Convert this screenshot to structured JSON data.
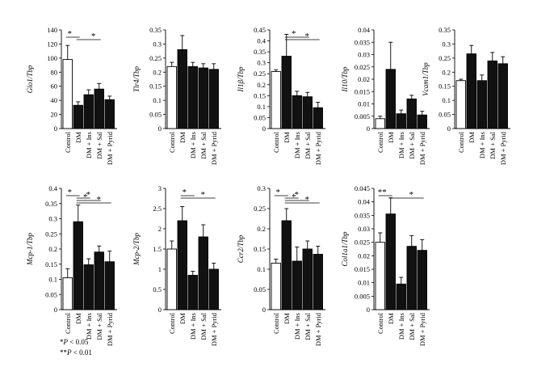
{
  "chart_data": [
    {
      "type": "bar",
      "ylabel": "Glo1/Tbp",
      "ylim": [
        0,
        140
      ],
      "ticks": [
        "0",
        "20",
        "40",
        "60",
        "80",
        "100",
        "120",
        "140"
      ],
      "categories": [
        "Control",
        "DM",
        "DM + Ins",
        "DM + Sal",
        "DM + Pyrid"
      ],
      "values": [
        98,
        33,
        48,
        56,
        41
      ],
      "errors": [
        20,
        5,
        7,
        8,
        5
      ],
      "sig": [
        {
          "from": 0,
          "to": 1,
          "label": "*"
        },
        {
          "from": 1,
          "to": 3,
          "label": "*"
        }
      ]
    },
    {
      "type": "bar",
      "ylabel": "Tlr4/Tbp",
      "ylim": [
        0,
        0.35
      ],
      "ticks": [
        "0",
        "0.05",
        "0.1",
        "0.15",
        "0.2",
        "0.25",
        "0.3",
        "0.35"
      ],
      "categories": [
        "Control",
        "DM",
        "DM + Ins",
        "DM + Sal",
        "DM + Pyrid"
      ],
      "values": [
        0.22,
        0.28,
        0.22,
        0.215,
        0.21
      ],
      "errors": [
        0.015,
        0.05,
        0.015,
        0.015,
        0.02
      ],
      "sig": []
    },
    {
      "type": "bar",
      "ylabel": "Il1β/Tbp",
      "ylim": [
        0,
        0.45
      ],
      "ticks": [
        "0",
        "0.05",
        "0.1",
        "0.15",
        "0.2",
        "0.25",
        "0.3",
        "0.35",
        "0.4",
        "0.45"
      ],
      "categories": [
        "Control",
        "DM",
        "DM + Ins",
        "DM + Sal",
        "DM + Pyrid"
      ],
      "values": [
        0.26,
        0.33,
        0.15,
        0.145,
        0.095
      ],
      "errors": [
        0.008,
        0.1,
        0.02,
        0.02,
        0.025
      ],
      "sig": [
        {
          "from": 1,
          "to": 3,
          "label": "*"
        },
        {
          "from": 1,
          "to": 4,
          "label": "*"
        }
      ]
    },
    {
      "type": "bar",
      "ylabel": "Il10/Tbp",
      "ylim": [
        0,
        0.04
      ],
      "ticks": [
        "0",
        "0.005",
        "0.01",
        "0.015",
        "0.02",
        "0.025",
        "0.03",
        "0.035",
        "0.04"
      ],
      "categories": [
        "Control",
        "DM",
        "DM + Ins",
        "DM + Sal",
        "DM + Pyrid"
      ],
      "values": [
        0.004,
        0.024,
        0.006,
        0.012,
        0.0055
      ],
      "errors": [
        0.001,
        0.011,
        0.0015,
        0.0015,
        0.0015
      ],
      "sig": []
    },
    {
      "type": "bar",
      "ylabel": "Vcam1/Tbp",
      "ylim": [
        0,
        0.35
      ],
      "ticks": [
        "0",
        "0.05",
        "0.1",
        "0.15",
        "0.2",
        "0.25",
        "0.3",
        "0.35"
      ],
      "categories": [
        "Control",
        "DM",
        "DM + Ins",
        "DM + Sal",
        "DM + Pyrid"
      ],
      "values": [
        0.17,
        0.265,
        0.17,
        0.24,
        0.23
      ],
      "errors": [
        0.005,
        0.03,
        0.02,
        0.03,
        0.025
      ],
      "sig": []
    },
    {
      "type": "bar",
      "ylabel": "Mcp-1/Tbp",
      "ylim": [
        0,
        0.4
      ],
      "ticks": [
        "0",
        "0.05",
        "0.1",
        "0.15",
        "0.2",
        "0.25",
        "0.3",
        "0.35",
        "0.4"
      ],
      "categories": [
        "Control",
        "DM",
        "DM + Ins",
        "DM + Sal",
        "DM + Pyrid"
      ],
      "values": [
        0.105,
        0.29,
        0.148,
        0.19,
        0.158
      ],
      "errors": [
        0.03,
        0.055,
        0.02,
        0.02,
        0.035
      ],
      "sig": [
        {
          "from": 0,
          "to": 1,
          "label": "*"
        },
        {
          "from": 1,
          "to": 2,
          "label": "*"
        },
        {
          "from": 1,
          "to": 3,
          "label": "*"
        },
        {
          "from": 1,
          "to": 4,
          "label": "*"
        }
      ]
    },
    {
      "type": "bar",
      "ylabel": "Mcp-2/Tbp",
      "ylim": [
        0,
        3
      ],
      "ticks": [
        "0",
        "0.5",
        "1",
        "1.5",
        "2",
        "2.5",
        "3"
      ],
      "categories": [
        "Control",
        "DM",
        "DM + Ins",
        "DM + Sal",
        "DM + Pyrid"
      ],
      "values": [
        1.5,
        2.2,
        0.85,
        1.8,
        1.0
      ],
      "errors": [
        0.2,
        0.35,
        0.1,
        0.3,
        0.15
      ],
      "sig": [
        {
          "from": 1,
          "to": 2,
          "label": "*"
        },
        {
          "from": 1,
          "to": 4,
          "label": "*"
        }
      ]
    },
    {
      "type": "bar",
      "ylabel": "Ccr2/Tbp",
      "ylim": [
        0,
        0.3
      ],
      "ticks": [
        "0",
        "0.05",
        "0.1",
        "0.15",
        "0.2",
        "0.25",
        "0.3"
      ],
      "categories": [
        "Control",
        "DM",
        "DM + Ins",
        "DM + Sal",
        "DM + Pyrid"
      ],
      "values": [
        0.115,
        0.22,
        0.12,
        0.15,
        0.137
      ],
      "errors": [
        0.01,
        0.03,
        0.035,
        0.02,
        0.02
      ],
      "sig": [
        {
          "from": 0,
          "to": 1,
          "label": "*"
        },
        {
          "from": 1,
          "to": 2,
          "label": "*"
        },
        {
          "from": 1,
          "to": 3,
          "label": "*"
        },
        {
          "from": 1,
          "to": 4,
          "label": "*"
        }
      ]
    },
    {
      "type": "bar",
      "ylabel": "Col1a1/Tbp",
      "ylim": [
        0,
        0.045
      ],
      "ticks": [
        "0",
        "0.005",
        "0.01",
        "0.015",
        "0.02",
        "0.025",
        "0.03",
        "0.035",
        "0.04",
        "0.045"
      ],
      "categories": [
        "Control",
        "DM",
        "DM + Ins",
        "DM + Sal",
        "DM + Pyrid"
      ],
      "values": [
        0.025,
        0.0355,
        0.0095,
        0.0235,
        0.022
      ],
      "errors": [
        0.0035,
        0.006,
        0.0025,
        0.004,
        0.004
      ],
      "sig": [
        {
          "from": 0,
          "to": 1,
          "label": "**"
        },
        {
          "from": 1,
          "to": 4,
          "label": "*"
        }
      ]
    }
  ],
  "legend": {
    "line1_stars": "*",
    "line1_p": "P",
    "line1_rest": " < 0.05",
    "line2_stars": "**",
    "line2_p": "P",
    "line2_rest": " < 0.01"
  },
  "colors": {
    "control_fill": "#ffffff",
    "treatment_fill": "#111111",
    "stroke": "#000000"
  }
}
